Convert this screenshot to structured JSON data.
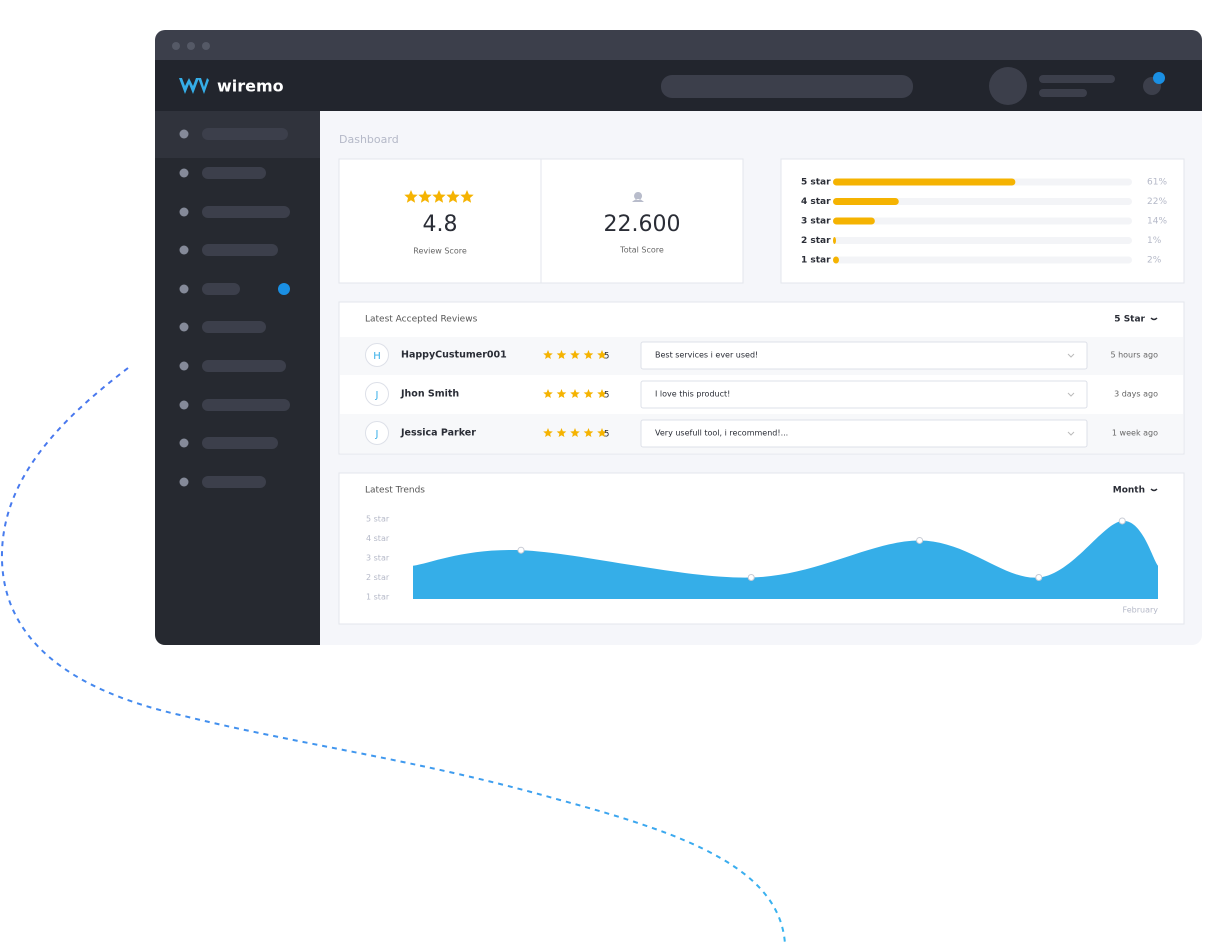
{
  "brand": "wiremo",
  "page_title": "Dashboard",
  "summary": [
    {
      "value": 4.8,
      "label": "Review Score"
    },
    {
      "value": "22.600",
      "label": "Total Score"
    }
  ],
  "rating_distribution": {
    "xlim": [
      0,
      100
    ],
    "color": "#f5b301",
    "rows": [
      {
        "label": "5 star",
        "value": 61,
        "value_label": "61%"
      },
      {
        "label": "4 star",
        "value": 22,
        "value_label": "22%"
      },
      {
        "label": "3 star",
        "value": 14,
        "value_label": "14%"
      },
      {
        "label": "2 star",
        "value": 1,
        "value_label": "1%"
      },
      {
        "label": "1 star",
        "value": 2,
        "value_label": "2%"
      }
    ]
  },
  "reviews": {
    "title": "Latest Accepted Reviews",
    "filter": "5 Star",
    "rows": [
      {
        "initial": "H",
        "name": "HappyCustumer001",
        "rating": 5,
        "comment": "Best services i ever used!",
        "time": "5 hours ago"
      },
      {
        "initial": "J",
        "name": "Jhon Smith",
        "rating": 5,
        "comment": "I love this product!",
        "time": "3 days ago"
      },
      {
        "initial": "J",
        "name": "Jessica Parker",
        "rating": 5,
        "comment": "Very usefull tool, i recommend!...",
        "time": "1 week ago"
      }
    ]
  },
  "trends": {
    "title": "Latest Trends",
    "filter": "Month",
    "chart_data": {
      "type": "area",
      "color": "#35aee8",
      "x": [
        0,
        14.5,
        45.4,
        68,
        84,
        95.2,
        100
      ],
      "values": [
        2.6,
        3.4,
        2.0,
        3.9,
        2.0,
        4.9,
        2.6
      ],
      "xlim": [
        0,
        100
      ],
      "ylim": [
        1,
        5
      ],
      "yticks": [
        {
          "value": 5,
          "label": "5 star"
        },
        {
          "value": 4,
          "label": "4 star"
        },
        {
          "value": 3,
          "label": "3 star"
        },
        {
          "value": 2,
          "label": "2 star"
        },
        {
          "value": 1,
          "label": "1 star"
        }
      ],
      "x_label": "February"
    }
  }
}
